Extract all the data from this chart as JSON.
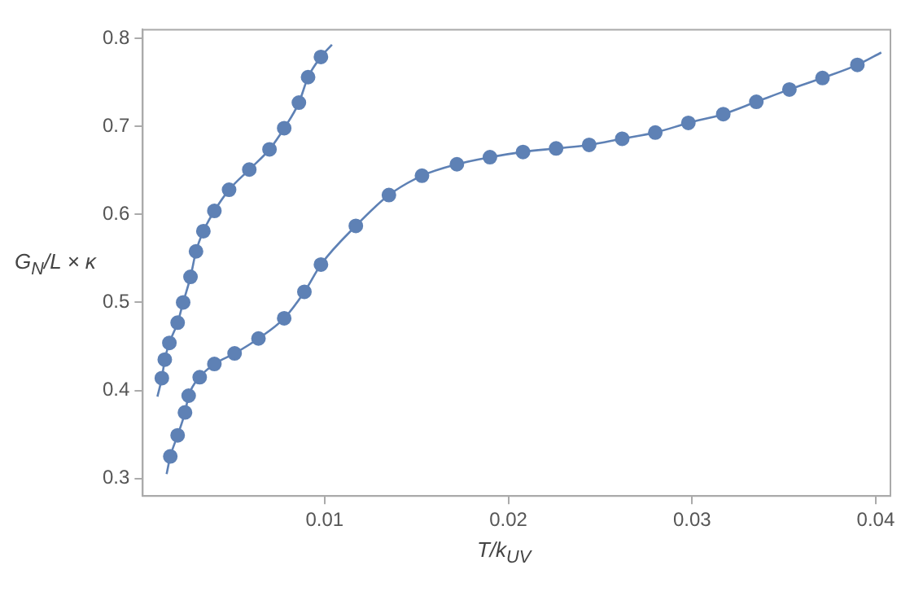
{
  "chart_data": {
    "type": "scatter",
    "xlabel": "T/k$_{UV}$",
    "ylabel": "G$_{N}$/L × κ",
    "xlim": [
      0.0001,
      0.0408
    ],
    "ylim": [
      0.28,
      0.81
    ],
    "xticks": [
      0.01,
      0.02,
      0.03,
      0.04
    ],
    "yticks": [
      0.3,
      0.4,
      0.5,
      0.6,
      0.7,
      0.8
    ],
    "grid": false,
    "legend": false,
    "marker": "circle",
    "series": [
      {
        "color": "#5e81b5",
        "x": [
          0.00114,
          0.0013,
          0.00155,
          0.002,
          0.0023,
          0.0027,
          0.003,
          0.0034,
          0.004,
          0.0048,
          0.0059,
          0.007,
          0.0078,
          0.0086,
          0.0091,
          0.0098
        ],
        "values": [
          0.414,
          0.435,
          0.454,
          0.477,
          0.5,
          0.529,
          0.558,
          0.581,
          0.604,
          0.628,
          0.651,
          0.674,
          0.698,
          0.727,
          0.756,
          0.779
        ]
      },
      {
        "type": "line",
        "marker": "none",
        "color": "#5e81b5",
        "x": [
          0.0009,
          0.00114,
          0.0013,
          0.00155,
          0.002,
          0.0023,
          0.0027,
          0.003,
          0.0034,
          0.004,
          0.0048,
          0.0059,
          0.007,
          0.0078,
          0.0086,
          0.0091,
          0.0098,
          0.0104
        ],
        "values": [
          0.393,
          0.414,
          0.435,
          0.454,
          0.477,
          0.5,
          0.529,
          0.558,
          0.581,
          0.604,
          0.628,
          0.651,
          0.674,
          0.698,
          0.727,
          0.756,
          0.779,
          0.793
        ]
      },
      {
        "color": "#5e81b5",
        "x": [
          0.0016,
          0.002,
          0.0024,
          0.0026,
          0.0032,
          0.004,
          0.0051,
          0.0064,
          0.0078,
          0.0089,
          0.0098,
          0.0117,
          0.0135,
          0.0153,
          0.0172,
          0.019,
          0.0208,
          0.0226,
          0.0244,
          0.0262,
          0.028,
          0.0298,
          0.0317,
          0.0335,
          0.0353,
          0.0371,
          0.039
        ],
        "values": [
          0.325,
          0.349,
          0.375,
          0.394,
          0.415,
          0.43,
          0.442,
          0.459,
          0.482,
          0.512,
          0.543,
          0.587,
          0.622,
          0.644,
          0.657,
          0.665,
          0.671,
          0.675,
          0.679,
          0.686,
          0.693,
          0.704,
          0.714,
          0.728,
          0.742,
          0.755,
          0.77
        ]
      },
      {
        "type": "line",
        "marker": "none",
        "color": "#5e81b5",
        "x": [
          0.0014,
          0.0016,
          0.002,
          0.0024,
          0.0026,
          0.0032,
          0.004,
          0.0051,
          0.0064,
          0.0078,
          0.0089,
          0.0098,
          0.0117,
          0.0135,
          0.0153,
          0.0172,
          0.019,
          0.0208,
          0.0226,
          0.0244,
          0.0262,
          0.028,
          0.0298,
          0.0317,
          0.0335,
          0.0353,
          0.0371,
          0.039,
          0.0403
        ],
        "values": [
          0.305,
          0.325,
          0.349,
          0.375,
          0.394,
          0.415,
          0.43,
          0.442,
          0.459,
          0.482,
          0.512,
          0.543,
          0.587,
          0.622,
          0.644,
          0.657,
          0.665,
          0.671,
          0.675,
          0.679,
          0.686,
          0.693,
          0.704,
          0.714,
          0.728,
          0.742,
          0.755,
          0.77,
          0.784
        ]
      }
    ]
  }
}
